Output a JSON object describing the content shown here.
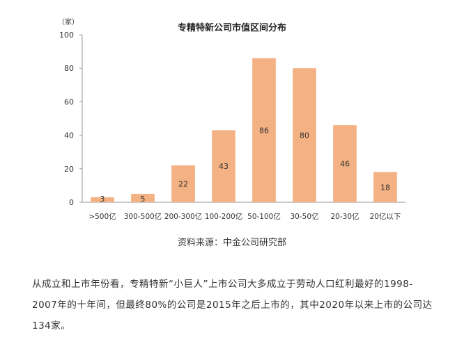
{
  "chart_data": {
    "type": "bar",
    "title": "专精特新公司市值区间分布",
    "ylabel": "（家）",
    "xlabel": "",
    "ylim": [
      0,
      100
    ],
    "yticks": [
      0,
      20,
      40,
      60,
      80,
      100
    ],
    "categories": [
      ">500亿",
      "300-500亿",
      "200-300亿",
      "100-200亿",
      "50-100亿",
      "30-50亿",
      "20-30亿",
      "20亿以下"
    ],
    "values": [
      3,
      5,
      22,
      43,
      86,
      80,
      46,
      18
    ],
    "bar_color": "#f4b183",
    "grid": false
  },
  "caption": "资料来源：中金公司研究部",
  "article": {
    "text": "从成立和上市年份看，专精特新“小巨人”上市公司大多成立于劳动人口红利最好的1998-2007年的十年间，但最终80%的公司是2015年之后上市的，其中2020年以来上市的公司达134家。"
  }
}
